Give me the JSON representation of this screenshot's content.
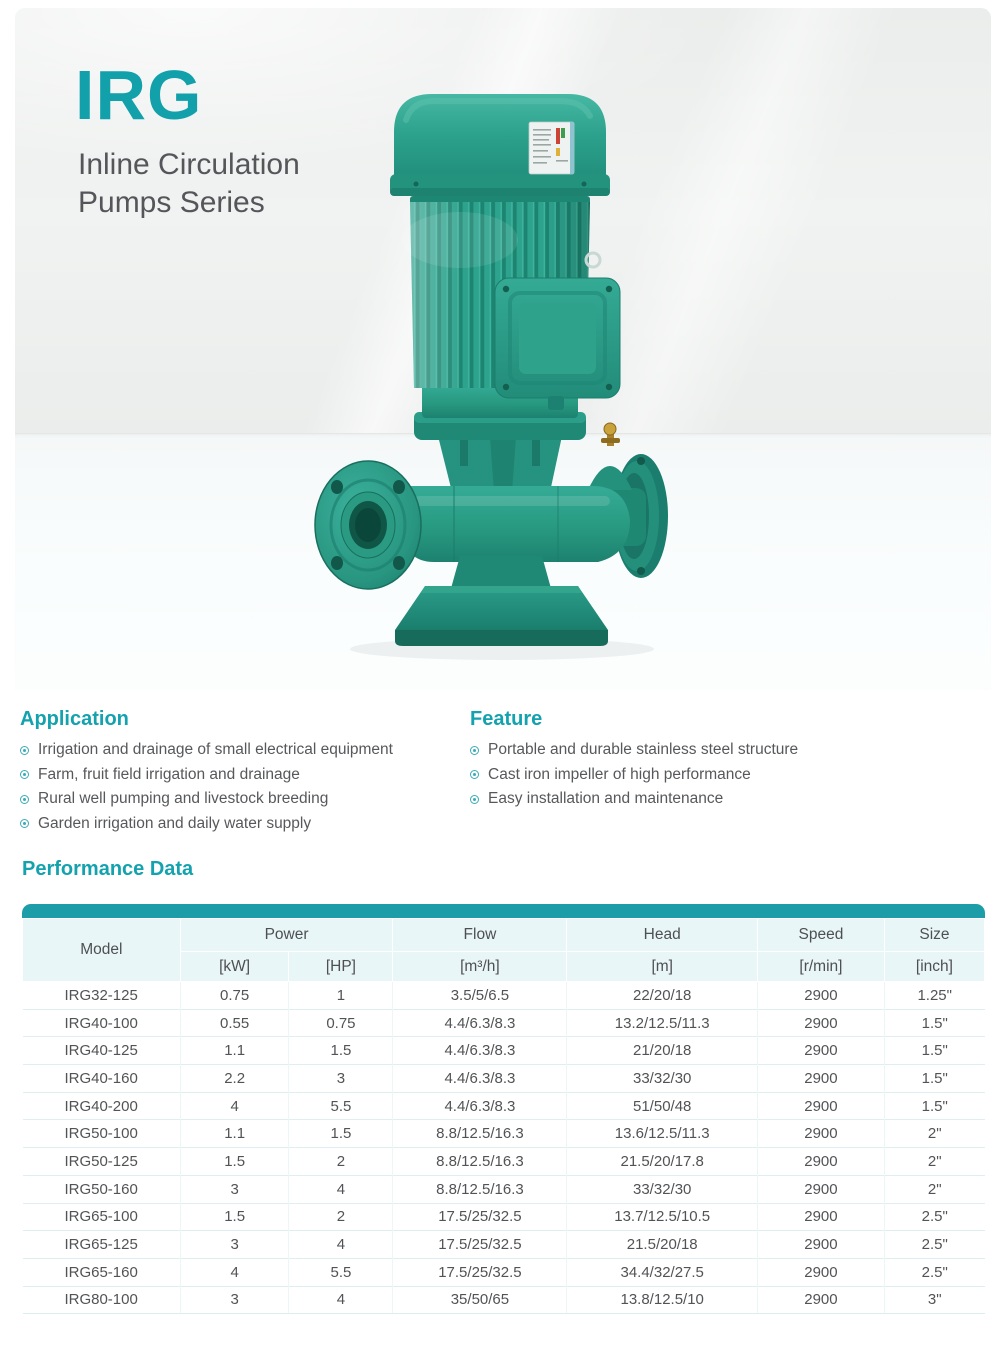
{
  "brand": {
    "title": "IRG",
    "subtitle_line1": "Inline Circulation",
    "subtitle_line2": "Pumps Series"
  },
  "application": {
    "title": "Application",
    "items": [
      "Irrigation and drainage of small electrical equipment",
      "Farm, fruit field irrigation and drainage",
      "Rural well pumping and livestock breeding",
      "Garden irrigation and daily water supply"
    ]
  },
  "feature": {
    "title": "Feature",
    "items": [
      "Portable and durable stainless steel structure",
      "Cast iron impeller of high performance",
      "Easy installation and maintenance"
    ]
  },
  "performance": {
    "title": "Performance Data",
    "table": {
      "groups": {
        "model": "Model",
        "power": "Power",
        "flow": "Flow",
        "head": "Head",
        "speed": "Speed",
        "size": "Size"
      },
      "units": {
        "kw": "[kW]",
        "hp": "[HP]",
        "flow": "[m³/h]",
        "head": "[m]",
        "speed": "[r/min]",
        "size": "[inch]"
      },
      "rows": [
        [
          "IRG32-125",
          "0.75",
          "1",
          "3.5/5/6.5",
          "22/20/18",
          "2900",
          "1.25\""
        ],
        [
          "IRG40-100",
          "0.55",
          "0.75",
          "4.4/6.3/8.3",
          "13.2/12.5/11.3",
          "2900",
          "1.5\""
        ],
        [
          "IRG40-125",
          "1.1",
          "1.5",
          "4.4/6.3/8.3",
          "21/20/18",
          "2900",
          "1.5\""
        ],
        [
          "IRG40-160",
          "2.2",
          "3",
          "4.4/6.3/8.3",
          "33/32/30",
          "2900",
          "1.5\""
        ],
        [
          "IRG40-200",
          "4",
          "5.5",
          "4.4/6.3/8.3",
          "51/50/48",
          "2900",
          "1.5\""
        ],
        [
          "IRG50-100",
          "1.1",
          "1.5",
          "8.8/12.5/16.3",
          "13.6/12.5/11.3",
          "2900",
          "2\""
        ],
        [
          "IRG50-125",
          "1.5",
          "2",
          "8.8/12.5/16.3",
          "21.5/20/17.8",
          "2900",
          "2\""
        ],
        [
          "IRG50-160",
          "3",
          "4",
          "8.8/12.5/16.3",
          "33/32/30",
          "2900",
          "2\""
        ],
        [
          "IRG65-100",
          "1.5",
          "2",
          "17.5/25/32.5",
          "13.7/12.5/10.5",
          "2900",
          "2.5\""
        ],
        [
          "IRG65-125",
          "3",
          "4",
          "17.5/25/32.5",
          "21.5/20/18",
          "2900",
          "2.5\""
        ],
        [
          "IRG65-160",
          "4",
          "5.5",
          "17.5/25/32.5",
          "34.4/32/27.5",
          "2900",
          "2.5\""
        ],
        [
          "IRG80-100",
          "3",
          "4",
          "35/50/65",
          "13.8/12.5/10",
          "2900",
          "3\""
        ]
      ]
    }
  },
  "colors": {
    "accent_teal": "#13a2ae",
    "table_bar_teal": "#1c9da8",
    "table_header_bg": "#e9f6f8",
    "text_gray": "#57585b",
    "pump_green": "#2ba18d"
  },
  "icons": {
    "bullet": "ring-bullet-icon",
    "product_image": "inline-circulation-pump-photo"
  }
}
